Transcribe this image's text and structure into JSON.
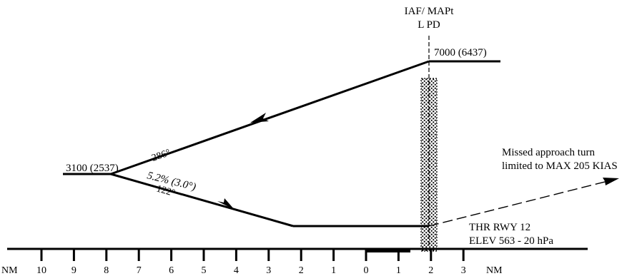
{
  "header": {
    "fix_line1": "IAF/ MAPt",
    "fix_line2": "L PD"
  },
  "labels": {
    "initial_altitude": "7000 (6437)",
    "turn_altitude": "3100 (2537)",
    "outbound_course": "286°",
    "gradient": "5.2% (3.0°)",
    "inbound_course": "122°",
    "missed_line1": "Missed approach turn",
    "missed_line2": "limited to MAX 205 KIAS",
    "threshold_line1": "THR RWY 12",
    "threshold_line2": "ELEV 563 - 20 hPa"
  },
  "distance_scale": {
    "unit": "NM",
    "left_ticks": [
      "10",
      "9",
      "8",
      "7",
      "6",
      "5",
      "4",
      "3",
      "2",
      "1",
      "0"
    ],
    "right_ticks": [
      "1",
      "2",
      "3"
    ]
  },
  "colors": {
    "ink": "#000000",
    "background": "#ffffff"
  }
}
